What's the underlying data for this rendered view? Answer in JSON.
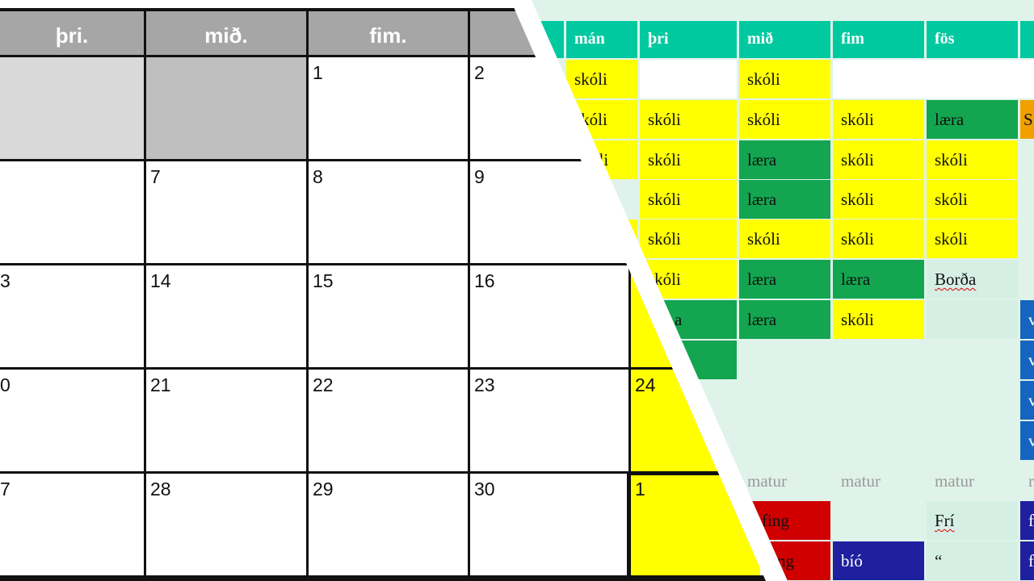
{
  "calendar": {
    "headers": [
      "þri.",
      "mið.",
      "fim."
    ],
    "weeks": [
      [
        "",
        "",
        "1",
        "2"
      ],
      [
        "",
        "7",
        "8",
        "9"
      ],
      [
        "3",
        "14",
        "15",
        "16"
      ],
      [
        "0",
        "21",
        "22",
        "23",
        "24"
      ],
      [
        "7",
        "28",
        "29",
        "30",
        "1"
      ]
    ]
  },
  "schedule": {
    "headers": [
      "mán",
      "þri",
      "mið",
      "fim",
      "fös"
    ],
    "rows": [
      [
        "skóli",
        "",
        "skóli",
        "",
        ""
      ],
      [
        "skóli",
        "skóli",
        "skóli",
        "skóli",
        "læra",
        "S"
      ],
      [
        "óli",
        "skóli",
        "læra",
        "skóli",
        "skóli"
      ],
      [
        "",
        "skóli",
        "læra",
        "skóli",
        "skóli"
      ],
      [
        "",
        "skóli",
        "skóli",
        "skóli",
        "skóli"
      ],
      [
        "skóli",
        "",
        "læra",
        "læra",
        "Borða"
      ],
      [
        "a",
        "",
        "læra",
        "skóli",
        "",
        "v"
      ],
      [
        "",
        "",
        "",
        "",
        "",
        "v"
      ],
      [
        "",
        "",
        "",
        "",
        "",
        "v"
      ],
      [
        "",
        "",
        "",
        "",
        "",
        "v"
      ],
      [
        "",
        "",
        "matur",
        "matur",
        "matur",
        "r"
      ],
      [
        "fing",
        "",
        "",
        "Frí",
        "f"
      ],
      [
        "ng",
        "",
        "bíó",
        "“",
        "f"
      ]
    ]
  },
  "colors": {
    "header_grey": "#a6a6a6",
    "schedule_header": "#00c9a0",
    "yellow": "#ffff00",
    "green": "#14a550",
    "light_mint": "#d6efe5",
    "red": "#d00000",
    "navy": "#1f1f9f",
    "blue": "#1565c0",
    "orange": "#f0a000"
  }
}
